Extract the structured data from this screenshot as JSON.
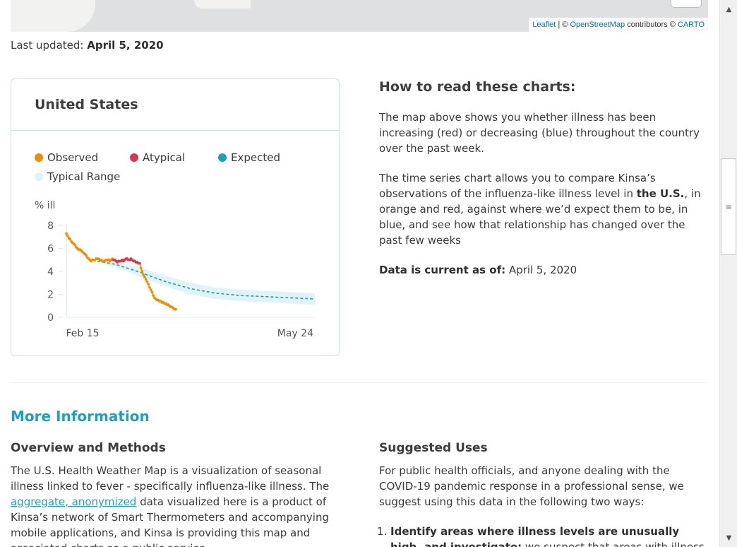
{
  "map": {
    "attribution": {
      "leaflet": "Leaflet",
      "separator": " | © ",
      "osm": "OpenStreetMap",
      "contributors": " contributors © ",
      "carto": "CARTO"
    }
  },
  "last_updated": {
    "label": "Last updated:",
    "date": "April 5, 2020"
  },
  "card": {
    "title": "United States",
    "legend": [
      {
        "label": "Observed",
        "color": "#f08c00"
      },
      {
        "label": "Atypical",
        "color": "#d6394f"
      },
      {
        "label": "Expected",
        "color": "#17a2b8"
      },
      {
        "label": "Typical Range",
        "color": "#e0f3f8"
      }
    ]
  },
  "chart_data": {
    "type": "line",
    "ylabel": "% ill",
    "ylim": [
      0,
      8
    ],
    "yticks": [
      "0",
      "2",
      "4",
      "6",
      "8"
    ],
    "xtick_labels": [
      "Feb 15",
      "May 24"
    ],
    "grid": false,
    "colors": {
      "observed": "#f08c00",
      "atypical": "#d6394f",
      "expected": "#17a2b8",
      "range": "#e0f3f8"
    },
    "series": [
      {
        "name": "Observed",
        "x_days": [
          0,
          1,
          2,
          3,
          4,
          5,
          6,
          7,
          8,
          9,
          10,
          11,
          12,
          13,
          14,
          15,
          16,
          17,
          18,
          19,
          20,
          21,
          22,
          23,
          24,
          25,
          26,
          27,
          28,
          29,
          30,
          31,
          32,
          33,
          34,
          35,
          36,
          37,
          38,
          39,
          40,
          41,
          42,
          43,
          44,
          45,
          46,
          47,
          48,
          49,
          50,
          51,
          52,
          53,
          54,
          55,
          56,
          57,
          58,
          59,
          60,
          61,
          62,
          63,
          64,
          65,
          66,
          67,
          68,
          69,
          70,
          71,
          72,
          73,
          74,
          75,
          76,
          77,
          78,
          79,
          80,
          81,
          82,
          83,
          84,
          85,
          86,
          87,
          88
        ],
        "values": [
          7.3,
          7.1,
          6.9,
          6.8,
          6.6,
          6.5,
          6.4,
          6.3,
          6.1,
          6.0,
          5.9,
          5.9,
          5.8,
          5.7,
          5.6,
          5.5,
          5.4,
          5.2,
          5.1,
          5.0,
          4.9,
          5.0,
          5.0,
          5.0,
          5.1,
          5.1,
          5.1,
          5.0,
          5.0,
          4.9,
          4.9,
          4.9,
          5.0,
          5.0,
          5.0,
          4.9,
          5.0,
          5.1,
          5.0,
          5.0,
          4.9,
          4.8,
          4.9,
          4.9,
          4.9,
          5.0,
          4.9,
          5.0,
          5.1,
          5.1,
          5.0,
          5.0,
          5.1,
          5.0,
          4.9,
          4.9,
          4.8,
          4.8,
          4.7,
          4.7,
          4.3,
          4.0,
          3.7,
          3.5,
          3.3,
          3.1,
          2.9,
          2.6,
          2.4,
          2.2,
          1.9,
          1.7,
          1.6,
          1.5,
          1.5,
          1.4,
          1.4,
          1.3,
          1.3,
          1.2,
          1.2,
          1.1,
          1.1,
          1.0,
          0.9,
          0.9,
          0.8,
          0.7,
          0.7
        ]
      },
      {
        "name": "Atypical",
        "x_days": [
          38,
          39,
          40,
          41,
          42,
          43,
          44,
          45,
          46,
          47,
          48,
          49,
          50,
          51,
          52,
          53,
          54,
          55,
          56,
          57,
          58,
          59
        ],
        "values": [
          5.0,
          5.0,
          4.9,
          4.8,
          4.9,
          4.9,
          4.9,
          5.0,
          4.9,
          5.0,
          5.1,
          5.1,
          5.0,
          5.0,
          5.1,
          5.0,
          4.9,
          4.9,
          4.8,
          4.8,
          4.7,
          4.7
        ]
      },
      {
        "name": "Expected",
        "x_days": [
          25,
          40,
          60,
          80,
          100,
          120,
          140,
          160,
          180,
          200
        ],
        "values": [
          4.9,
          4.6,
          3.9,
          3.1,
          2.5,
          2.1,
          1.9,
          1.8,
          1.7,
          1.6
        ]
      }
    ],
    "typical_range": {
      "x_days": [
        25,
        40,
        60,
        80,
        100,
        120,
        140,
        160,
        180,
        200
      ],
      "low": [
        4.7,
        4.4,
        3.5,
        2.7,
        2.0,
        1.6,
        1.4,
        1.3,
        1.2,
        1.1
      ],
      "high": [
        5.1,
        4.9,
        4.3,
        3.6,
        3.0,
        2.6,
        2.4,
        2.3,
        2.2,
        2.1
      ]
    }
  },
  "howto": {
    "title": "How to read these charts:",
    "p1": "The map above shows you whether illness has been increasing (red) or decreasing (blue) throughout the country over the past week.",
    "p2_a": "The time series chart allows you to compare Kinsa’s observations of the influenza-like illness level in ",
    "p2_b": "the U.S.",
    "p2_c": ", in orange and red, against where we’d expect them to be, in blue, and see how that relationship has changed over the past few weeks",
    "current_label": "Data is current as of:",
    "current_date": "April 5, 2020"
  },
  "more_info": {
    "title": "More Information",
    "overview": {
      "title": "Overview and Methods",
      "text_a": "The U.S. Health Weather Map is a visualization of seasonal illness linked to fever - specifically influenza-like illness. The ",
      "link": "aggregate, anonymized",
      "text_b": " data visualized here is a product of Kinsa’s network of Smart Thermometers and accompanying mobile applications, and Kinsa is providing this map and associated charts as a public service."
    },
    "uses": {
      "title": "Suggested Uses",
      "text": "For public health officials, and anyone dealing with the COVID-19 pandemic response in a professional sense, we suggest using this data in the following two ways:",
      "item1_bold": "Identify areas where illness levels are unusually high, and investigate:",
      "item1_text": " we suspect that areas with illness levels that"
    }
  }
}
